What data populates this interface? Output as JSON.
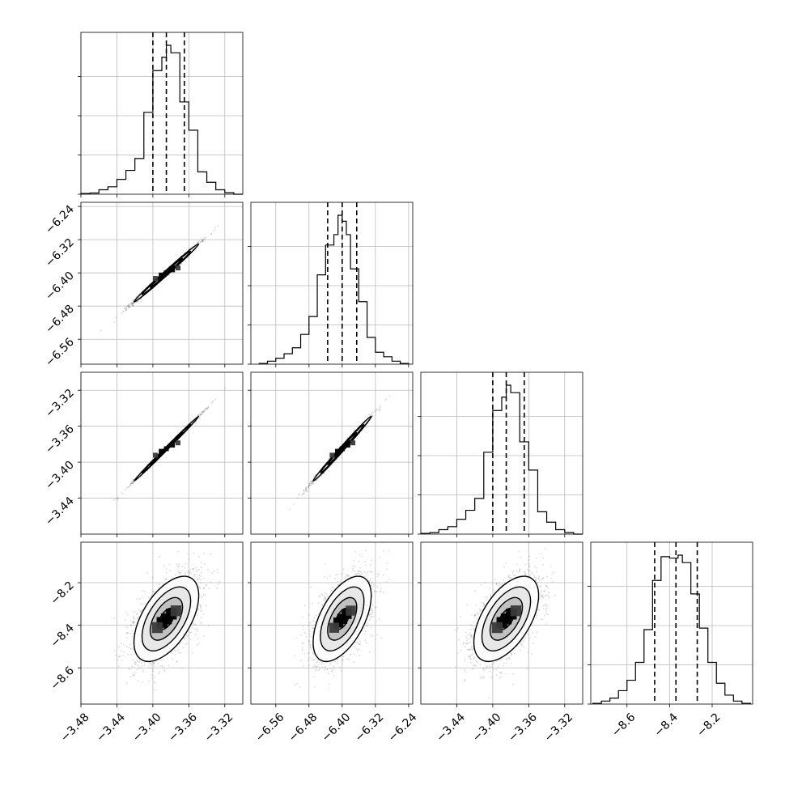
{
  "chart_data": {
    "type": "corner",
    "title": "",
    "grid": true,
    "colors": {
      "axis": "#000000",
      "grid": "#bbbbbb",
      "scatter": "#333333",
      "fill_dark": "#000000",
      "fill_light": "#ffffff",
      "background": "#ffffff"
    },
    "parameters": [
      {
        "index": 0,
        "range": [
          -3.48,
          -3.3
        ],
        "tick_values": [
          -3.48,
          -3.44,
          -3.4,
          -3.36,
          -3.32
        ],
        "tick_labels": [
          "−3.48",
          "−3.44",
          "−3.40",
          "−3.36",
          "−3.32"
        ],
        "quantiles": [
          -3.4,
          -3.385,
          -3.365
        ],
        "mean": -3.385,
        "sd": 0.018,
        "hist_max": 1.0,
        "hist_edges": [
          -3.48,
          -3.47,
          -3.46,
          -3.45,
          -3.44,
          -3.43,
          -3.42,
          -3.41,
          -3.4,
          -3.39,
          -3.385,
          -3.38,
          -3.37,
          -3.36,
          -3.35,
          -3.34,
          -3.33,
          -3.32,
          -3.31,
          -3.3
        ],
        "hist_values": [
          0.005,
          0.008,
          0.03,
          0.05,
          0.1,
          0.16,
          0.24,
          0.55,
          0.83,
          0.92,
          1.0,
          0.95,
          0.62,
          0.43,
          0.15,
          0.08,
          0.03,
          0.01,
          0.0
        ]
      },
      {
        "index": 1,
        "range": [
          -6.62,
          -6.23
        ],
        "tick_values": [
          -6.56,
          -6.48,
          -6.4,
          -6.32,
          -6.24
        ],
        "tick_labels": [
          "−6.56",
          "−6.48",
          "−6.40",
          "−6.32",
          "−6.24"
        ],
        "quantiles": [
          -6.435,
          -6.4,
          -6.365
        ],
        "mean": -6.4,
        "sd": 0.035,
        "hist_max": 1.0,
        "hist_edges": [
          -6.6,
          -6.58,
          -6.56,
          -6.54,
          -6.52,
          -6.5,
          -6.48,
          -6.46,
          -6.44,
          -6.42,
          -6.41,
          -6.4,
          -6.39,
          -6.38,
          -6.36,
          -6.34,
          -6.32,
          -6.3,
          -6.28,
          -6.26,
          -6.24
        ],
        "hist_values": [
          0.005,
          0.02,
          0.04,
          0.07,
          0.11,
          0.2,
          0.32,
          0.6,
          0.8,
          0.87,
          1.0,
          0.96,
          0.87,
          0.64,
          0.42,
          0.18,
          0.08,
          0.05,
          0.02,
          0.005
        ]
      },
      {
        "index": 2,
        "range": [
          -3.48,
          -3.3
        ],
        "tick_values": [
          -3.44,
          -3.4,
          -3.36,
          -3.32
        ],
        "tick_labels": [
          "−3.44",
          "−3.40",
          "−3.36",
          "−3.32"
        ],
        "quantiles": [
          -3.4,
          -3.385,
          -3.365
        ],
        "mean": -3.385,
        "sd": 0.018,
        "hist_max": 1.0,
        "hist_edges": [
          -3.48,
          -3.47,
          -3.46,
          -3.45,
          -3.44,
          -3.43,
          -3.42,
          -3.41,
          -3.4,
          -3.39,
          -3.385,
          -3.38,
          -3.37,
          -3.36,
          -3.35,
          -3.34,
          -3.33,
          -3.32,
          -3.31,
          -3.3
        ],
        "hist_values": [
          0.005,
          0.01,
          0.03,
          0.05,
          0.1,
          0.16,
          0.24,
          0.55,
          0.83,
          0.92,
          1.0,
          0.95,
          0.62,
          0.43,
          0.15,
          0.08,
          0.03,
          0.01,
          0.0
        ]
      },
      {
        "index": 3,
        "range": [
          -8.77,
          -8.01
        ],
        "tick_values": [
          -8.6,
          -8.4,
          -8.2
        ],
        "tick_labels": [
          "−8.6",
          "−8.4",
          "−8.2"
        ],
        "quantiles": [
          -8.47,
          -8.37,
          -8.27
        ],
        "mean": -8.37,
        "sd": 0.1,
        "hist_max": 1.0,
        "hist_edges": [
          -8.76,
          -8.72,
          -8.68,
          -8.64,
          -8.6,
          -8.56,
          -8.52,
          -8.48,
          -8.44,
          -8.4,
          -8.36,
          -8.34,
          -8.3,
          -8.26,
          -8.22,
          -8.18,
          -8.14,
          -8.1,
          -8.06,
          -8.02
        ],
        "hist_values": [
          0.005,
          0.02,
          0.04,
          0.09,
          0.16,
          0.28,
          0.5,
          0.83,
          0.99,
          0.98,
          1.0,
          0.95,
          0.74,
          0.51,
          0.28,
          0.14,
          0.06,
          0.02,
          0.005
        ]
      }
    ],
    "pairs": [
      {
        "x_param": 0,
        "y_param": 1,
        "correlation": 0.995,
        "row": 1,
        "col": 0
      },
      {
        "x_param": 0,
        "y_param": 2,
        "correlation": 0.998,
        "row": 2,
        "col": 0
      },
      {
        "x_param": 1,
        "y_param": 2,
        "correlation": 0.995,
        "row": 2,
        "col": 1
      },
      {
        "x_param": 0,
        "y_param": 3,
        "correlation": 0.55,
        "row": 3,
        "col": 0
      },
      {
        "x_param": 1,
        "y_param": 3,
        "correlation": 0.55,
        "row": 3,
        "col": 1
      },
      {
        "x_param": 2,
        "y_param": 3,
        "correlation": 0.55,
        "row": 3,
        "col": 2
      }
    ],
    "contour_levels_sigma": [
      0.5,
      1.0,
      1.5,
      2.0
    ]
  }
}
